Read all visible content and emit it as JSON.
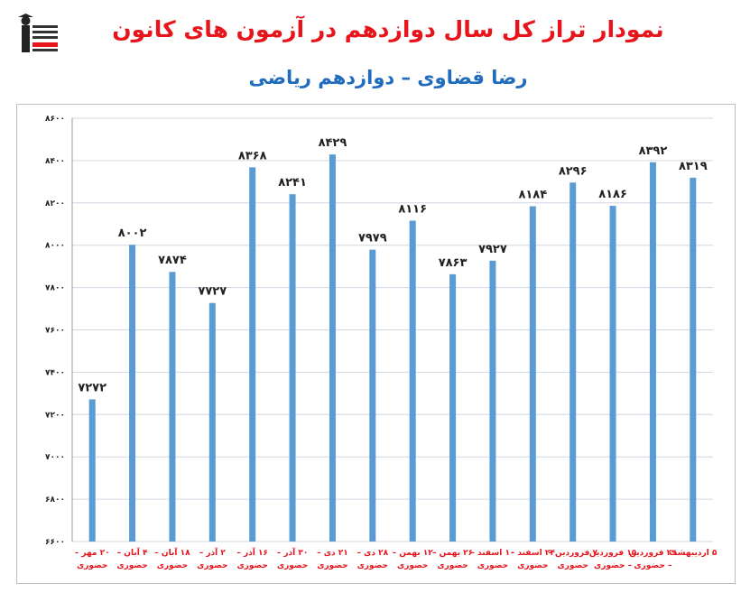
{
  "header": {
    "title": "نمودار تراز کل سال دوازدهم در آزمون های کانون",
    "subtitle": "رضا قضاوی – دوازدهم ریاضی"
  },
  "colors": {
    "title": "#e8141b",
    "subtitle": "#1f6bbd",
    "bar": "#5b9bd5",
    "grid": "#d0d6e2",
    "category_label": "#e8141b"
  },
  "logo": {
    "icon": "kanoon-logo-icon"
  },
  "chart_data": {
    "type": "bar",
    "title": "نمودار تراز کل سال دوازدهم در آزمون های کانون",
    "subtitle": "رضا قضاوی – دوازدهم ریاضی",
    "xlabel": "",
    "ylabel": "",
    "ylim": [
      6600,
      8600
    ],
    "yticks": [
      6600,
      6800,
      7000,
      7200,
      7400,
      7600,
      7800,
      8000,
      8200,
      8400,
      8600
    ],
    "ytick_labels": [
      "۶۶۰۰",
      "۶۸۰۰",
      "۷۰۰۰",
      "۷۲۰۰",
      "۷۴۰۰",
      "۷۶۰۰",
      "۷۸۰۰",
      "۸۰۰۰",
      "۸۲۰۰",
      "۸۴۰۰",
      "۸۶۰۰"
    ],
    "grid": true,
    "legend": "none",
    "categories": [
      [
        "۲۰ مهر –",
        "حضوری"
      ],
      [
        "۴ آبان –",
        "حضوری"
      ],
      [
        "۱۸ آبان –",
        "حضوری"
      ],
      [
        "۲ آذر –",
        "حضوری"
      ],
      [
        "۱۶ آذر –",
        "حضوری"
      ],
      [
        "۳۰ آذر –",
        "حضوری"
      ],
      [
        "۲۱ دی –",
        "حضوری"
      ],
      [
        "۲۸ دی –",
        "حضوری"
      ],
      [
        "۱۲ بهمن –",
        "حضوری"
      ],
      [
        "۲۶ بهمن –",
        "حضوری"
      ],
      [
        "۱۰ اسفند –",
        "حضوری"
      ],
      [
        "۲۴ اسفند –",
        "حضوری"
      ],
      [
        "۷ فروردین –",
        "حضوری"
      ],
      [
        "۱۵ فروردین",
        "– حضوری"
      ],
      [
        "۲۹ فروردین",
        "– حضوری"
      ],
      [
        "۵ اردیبهشت",
        ""
      ]
    ],
    "values": [
      7272,
      8002,
      7874,
      7727,
      8368,
      8241,
      8429,
      7979,
      8116,
      7863,
      7927,
      8184,
      8296,
      8186,
      8392,
      8319
    ],
    "value_labels": [
      "۷۲۷۲",
      "۸۰۰۲",
      "۷۸۷۴",
      "۷۷۲۷",
      "۸۳۶۸",
      "۸۲۴۱",
      "۸۴۲۹",
      "۷۹۷۹",
      "۸۱۱۶",
      "۷۸۶۳",
      "۷۹۲۷",
      "۸۱۸۴",
      "۸۲۹۶",
      "۸۱۸۶",
      "۸۳۹۲",
      "۸۳۱۹"
    ]
  }
}
